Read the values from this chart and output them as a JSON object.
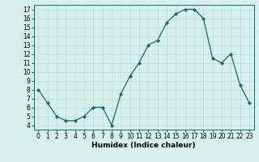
{
  "x": [
    0,
    1,
    2,
    3,
    4,
    5,
    6,
    7,
    8,
    9,
    10,
    11,
    12,
    13,
    14,
    15,
    16,
    17,
    18,
    19,
    20,
    21,
    22,
    23
  ],
  "y": [
    8.0,
    6.5,
    5.0,
    4.5,
    4.5,
    5.0,
    6.0,
    6.0,
    4.0,
    7.5,
    9.5,
    11.0,
    13.0,
    13.5,
    15.5,
    16.5,
    17.0,
    17.0,
    16.0,
    11.5,
    11.0,
    12.0,
    8.5,
    6.5
  ],
  "line_color": "#1a6b5a",
  "marker": "D",
  "marker_size": 2.0,
  "bg_color": "#d6f0ee",
  "grid_color": "#b8dbd8",
  "xlabel": "Humidex (Indice chaleur)",
  "ylim": [
    3.5,
    17.5
  ],
  "xlim": [
    -0.5,
    23.5
  ],
  "yticks": [
    4,
    5,
    6,
    7,
    8,
    9,
    10,
    11,
    12,
    13,
    14,
    15,
    16,
    17
  ],
  "xticks": [
    0,
    1,
    2,
    3,
    4,
    5,
    6,
    7,
    8,
    9,
    10,
    11,
    12,
    13,
    14,
    15,
    16,
    17,
    18,
    19,
    20,
    21,
    22,
    23
  ],
  "label_fontsize": 6.5,
  "tick_fontsize": 5.5
}
